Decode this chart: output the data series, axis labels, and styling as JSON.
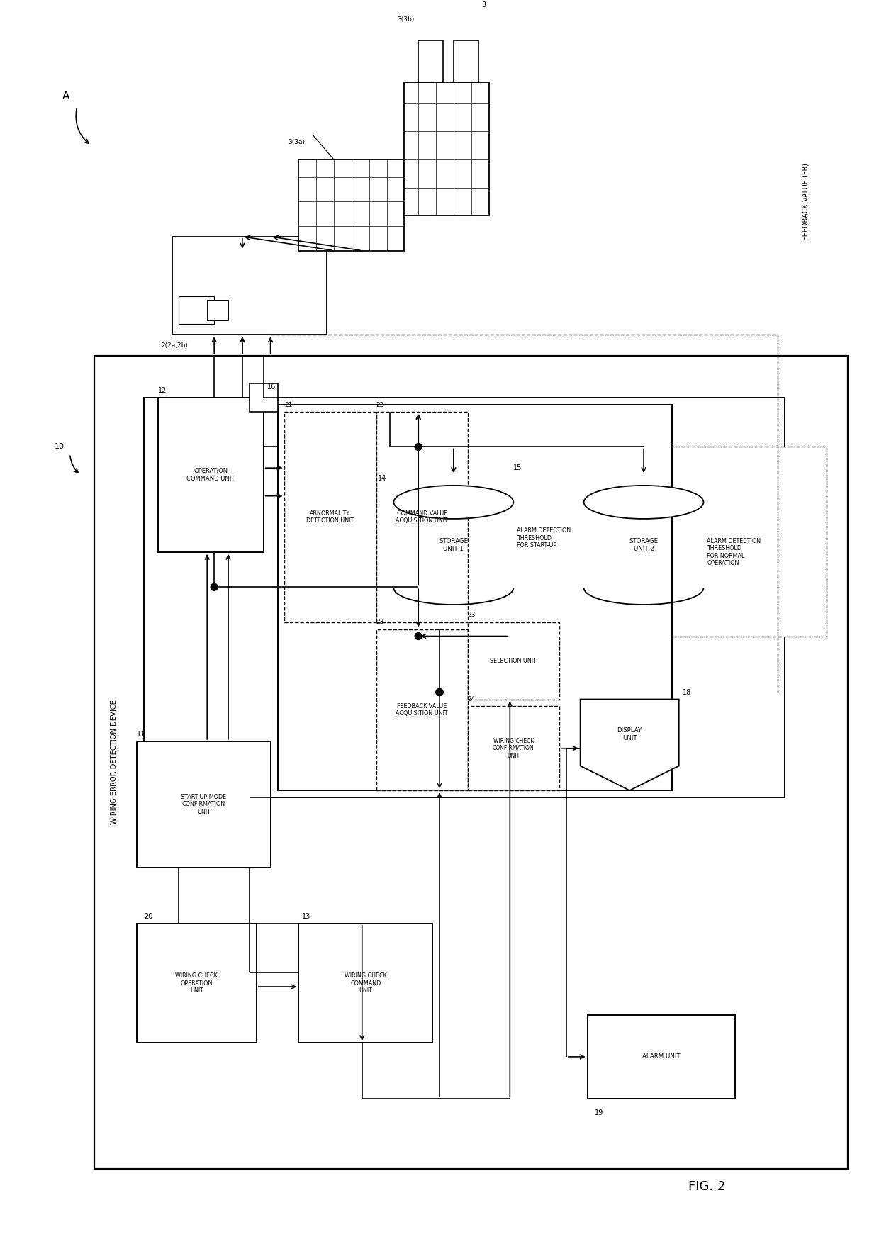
{
  "title": "FIG. 2",
  "fig_label": "A",
  "label_10": "10",
  "background": "#ffffff",
  "main_border_label": "WIRING ERROR DETECTION DEVICE",
  "units": {
    "11": "START-UP MODE\nCONFIRMATION\nUNIT",
    "12": "OPERATION\nCOMMAND UNIT",
    "13": "WIRING CHECK\nCOMMAND\nUNIT",
    "14": "STORAGE\nUNIT 1",
    "15": "STORAGE\nUNIT 2",
    "18": "DISPLAY\nUNIT",
    "19": "ALARM UNIT",
    "20": "WIRING CHECK\nOPERATION\nUNIT",
    "21": "ABNORMALITY\nDETECTION UNIT",
    "22": "COMMAND VALUE\nACQUISITION UNIT",
    "23": "FEEDBACK VALUE\nACQUISITION UNIT",
    "23s": "SELECTION UNIT",
    "24": "WIRING CHECK\nCONFIRMATION\nUNIT"
  },
  "alarm_label_1": "ALARM DETECTION\nTHRESHOLD\nFOR START-UP",
  "alarm_label_2": "ALARM DETECTION\nTHRESHOLD\nFOR NORMAL\nOPERATION",
  "feedback_label": "FEEDBACK VALUE (FB)"
}
